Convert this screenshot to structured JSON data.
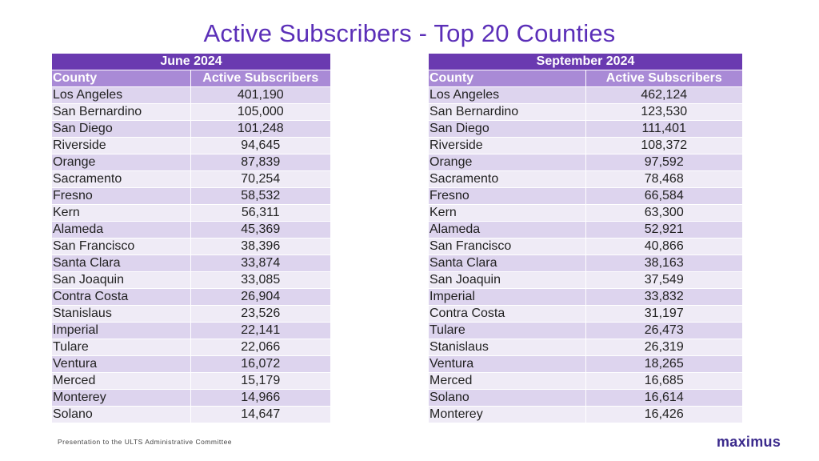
{
  "title": "Active Subscribers - Top 20 Counties",
  "footer": "Presentation to the ULTS Administrative Committee",
  "logo_text": "maximus",
  "colors": {
    "title": "#5b2fb8",
    "header_dark": "#6a3ab0",
    "header_light": "#a98ad6",
    "row_odd": "#ddd4ee",
    "row_even": "#efebf6"
  },
  "tables": [
    {
      "period": "June 2024",
      "columns": [
        "County",
        "Active Subscribers"
      ],
      "rows": [
        [
          "Los Angeles",
          "401,190"
        ],
        [
          "San Bernardino",
          "105,000"
        ],
        [
          "San Diego",
          "101,248"
        ],
        [
          "Riverside",
          "94,645"
        ],
        [
          "Orange",
          "87,839"
        ],
        [
          "Sacramento",
          "70,254"
        ],
        [
          "Fresno",
          "58,532"
        ],
        [
          "Kern",
          "56,311"
        ],
        [
          "Alameda",
          "45,369"
        ],
        [
          "San Francisco",
          "38,396"
        ],
        [
          "Santa Clara",
          "33,874"
        ],
        [
          "San Joaquin",
          "33,085"
        ],
        [
          "Contra Costa",
          "26,904"
        ],
        [
          "Stanislaus",
          "23,526"
        ],
        [
          "Imperial",
          "22,141"
        ],
        [
          "Tulare",
          "22,066"
        ],
        [
          "Ventura",
          "16,072"
        ],
        [
          "Merced",
          "15,179"
        ],
        [
          "Monterey",
          "14,966"
        ],
        [
          "Solano",
          "14,647"
        ]
      ]
    },
    {
      "period": "September 2024",
      "columns": [
        "County",
        "Active Subscribers"
      ],
      "rows": [
        [
          "Los Angeles",
          "462,124"
        ],
        [
          "San Bernardino",
          "123,530"
        ],
        [
          "San Diego",
          "111,401"
        ],
        [
          "Riverside",
          "108,372"
        ],
        [
          "Orange",
          "97,592"
        ],
        [
          "Sacramento",
          "78,468"
        ],
        [
          "Fresno",
          "66,584"
        ],
        [
          "Kern",
          "63,300"
        ],
        [
          "Alameda",
          "52,921"
        ],
        [
          "San Francisco",
          "40,866"
        ],
        [
          "Santa Clara",
          "38,163"
        ],
        [
          "San Joaquin",
          "37,549"
        ],
        [
          "Imperial",
          "33,832"
        ],
        [
          "Contra Costa",
          "31,197"
        ],
        [
          "Tulare",
          "26,473"
        ],
        [
          "Stanislaus",
          "26,319"
        ],
        [
          "Ventura",
          "18,265"
        ],
        [
          "Merced",
          "16,685"
        ],
        [
          "Solano",
          "16,614"
        ],
        [
          "Monterey",
          "16,426"
        ]
      ]
    }
  ]
}
